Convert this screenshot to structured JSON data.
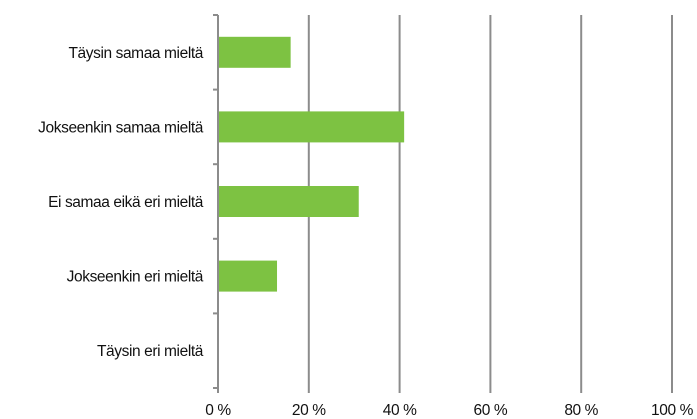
{
  "chart_data": {
    "type": "bar",
    "orientation": "horizontal",
    "title": "",
    "xlabel": "",
    "ylabel": "",
    "categories": [
      "Täysin samaa mieltä",
      "Jokseenkin samaa mieltä",
      "Ei samaa eikä eri mieltä",
      "Jokseenkin eri mieltä",
      "Täysin eri mieltä"
    ],
    "values": [
      16,
      41,
      31,
      13,
      0
    ],
    "xlim": [
      0,
      100
    ],
    "xticks": [
      0,
      20,
      40,
      60,
      80,
      100
    ],
    "xtick_labels": [
      "0 %",
      "20 %",
      "40 %",
      "60 %",
      "80 %",
      "100 %"
    ],
    "grid": "vertical",
    "legend": "none",
    "bar_color": "#7dc242",
    "grid_color": "#8c8c8c"
  }
}
